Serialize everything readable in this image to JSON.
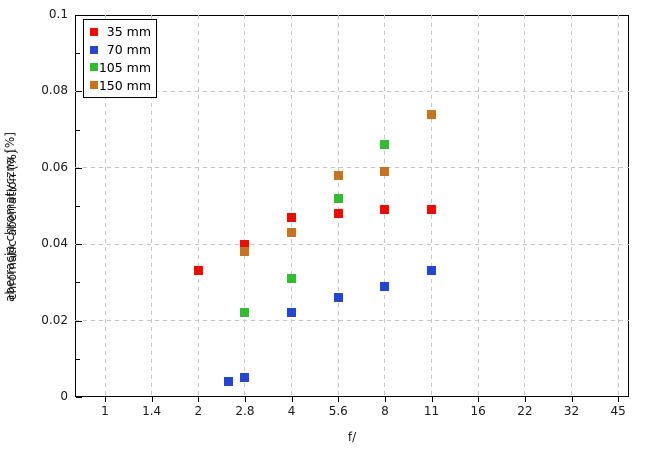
{
  "chart_data": {
    "type": "scatter",
    "title": "",
    "xlabel": "f/",
    "ylabel_overlapping": [
      "aberracja chromatyczna [%]",
      "chromatic aberration (%)"
    ],
    "x_scale": "log (photographic f-stops)",
    "x_ticks": [
      1,
      1.4,
      2,
      2.8,
      4,
      5.6,
      8,
      11,
      16,
      22,
      32,
      45
    ],
    "y_ticks": [
      0,
      0.02,
      0.04,
      0.06,
      0.08,
      0.1
    ],
    "y_minor_ticks": [
      0.01,
      0.03,
      0.05,
      0.07,
      0.09
    ],
    "ylim": [
      0,
      0.1
    ],
    "grid": true,
    "legend_position": "top-left",
    "marker": "square",
    "series": [
      {
        "name": "35 mm",
        "color": "#ec0d00",
        "points": [
          [
            2,
            0.033
          ],
          [
            2.8,
            0.04
          ],
          [
            4,
            0.047
          ],
          [
            5.6,
            0.048
          ],
          [
            8,
            0.049
          ],
          [
            11,
            0.049
          ]
        ]
      },
      {
        "name": "70 mm",
        "color": "#2447d3",
        "points": [
          [
            2.5,
            0.004
          ],
          [
            2.8,
            0.005
          ],
          [
            4,
            0.022
          ],
          [
            5.6,
            0.026
          ],
          [
            8,
            0.029
          ],
          [
            11,
            0.033
          ]
        ]
      },
      {
        "name": "105 mm",
        "color": "#31bd2f",
        "points": [
          [
            2.8,
            0.022
          ],
          [
            4,
            0.031
          ],
          [
            5.6,
            0.052
          ],
          [
            8,
            0.066
          ]
        ]
      },
      {
        "name": "150 mm",
        "color": "#c77420",
        "points": [
          [
            2.8,
            0.038
          ],
          [
            4,
            0.043
          ],
          [
            5.6,
            0.058
          ],
          [
            8,
            0.059
          ],
          [
            11,
            0.074
          ]
        ]
      }
    ]
  }
}
